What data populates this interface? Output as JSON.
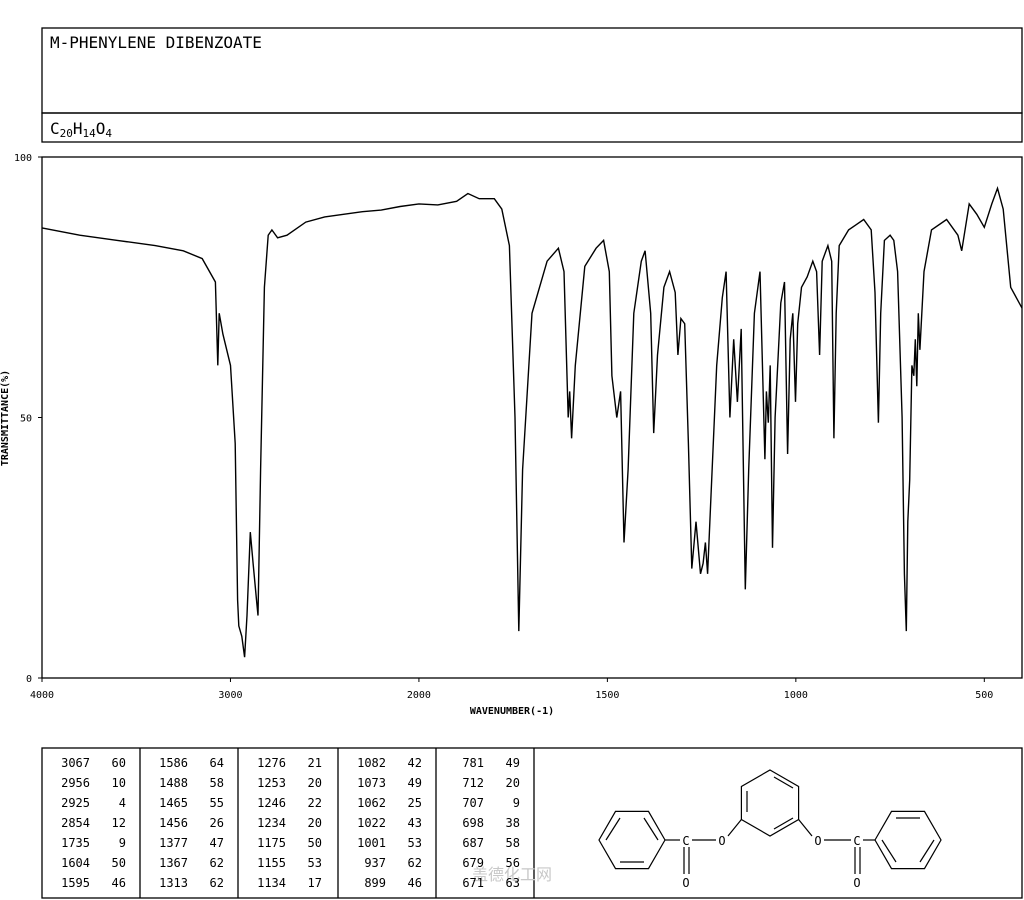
{
  "header": {
    "name": "M-PHENYLENE DIBENZOATE",
    "formula": "C20H14O4"
  },
  "chart_data": {
    "type": "line",
    "color": "#000000",
    "ylabel": "TRANSMITTANCE(%)",
    "xlabel": "WAVENUMBER(-1)",
    "xlim": [
      4000,
      400
    ],
    "ylim": [
      0,
      100
    ],
    "xticks": [
      4000,
      3000,
      2000,
      1500,
      1000,
      500
    ],
    "yticks": [
      0,
      50,
      100
    ],
    "grid": false,
    "x": [
      4000,
      3800,
      3600,
      3400,
      3250,
      3150,
      3080,
      3067,
      3060,
      3040,
      3000,
      2975,
      2962,
      2956,
      2940,
      2925,
      2912,
      2895,
      2880,
      2862,
      2854,
      2840,
      2820,
      2800,
      2780,
      2750,
      2700,
      2600,
      2500,
      2400,
      2300,
      2200,
      2100,
      2000,
      1950,
      1900,
      1870,
      1840,
      1800,
      1780,
      1760,
      1745,
      1735,
      1725,
      1700,
      1660,
      1630,
      1615,
      1604,
      1600,
      1595,
      1585,
      1560,
      1530,
      1510,
      1495,
      1488,
      1475,
      1465,
      1456,
      1445,
      1430,
      1410,
      1400,
      1385,
      1377,
      1367,
      1350,
      1335,
      1320,
      1313,
      1305,
      1295,
      1285,
      1276,
      1265,
      1253,
      1246,
      1240,
      1234,
      1225,
      1210,
      1195,
      1185,
      1175,
      1165,
      1155,
      1145,
      1134,
      1125,
      1110,
      1095,
      1082,
      1078,
      1073,
      1068,
      1062,
      1055,
      1040,
      1030,
      1022,
      1015,
      1008,
      1001,
      995,
      985,
      970,
      955,
      945,
      937,
      930,
      915,
      905,
      899,
      893,
      885,
      860,
      840,
      820,
      800,
      790,
      781,
      775,
      765,
      750,
      740,
      730,
      718,
      712,
      707,
      703,
      698,
      692,
      687,
      683,
      679,
      675,
      671,
      660,
      640,
      600,
      570,
      560,
      540,
      520,
      500,
      480,
      465,
      450,
      430,
      400
    ],
    "values": [
      86.4,
      85,
      84,
      83,
      82,
      80.5,
      76,
      60,
      70,
      66,
      60,
      45,
      15,
      10,
      8,
      4,
      12,
      28,
      22,
      15,
      12,
      40,
      75,
      85,
      86,
      84.5,
      85,
      87.5,
      88.5,
      89,
      89.5,
      89.8,
      90.5,
      91,
      90.8,
      91.5,
      93,
      92,
      92,
      90,
      83,
      50,
      9,
      40,
      70,
      80,
      82.5,
      78,
      50,
      55,
      46,
      60,
      79,
      82.5,
      84,
      78,
      58,
      50,
      55,
      26,
      40,
      70,
      80,
      82,
      70,
      47,
      62,
      75,
      78,
      74,
      62,
      69,
      68,
      45,
      21,
      30,
      20,
      22,
      26,
      20,
      35,
      60,
      73,
      78,
      50,
      65,
      53,
      67,
      17,
      40,
      70,
      78,
      42,
      55,
      49,
      60,
      25,
      50,
      72,
      76,
      43,
      65,
      70,
      53,
      68,
      75,
      77,
      80,
      78,
      62,
      80,
      83,
      80,
      46,
      70,
      83,
      86,
      87,
      88,
      86,
      74,
      49,
      70,
      84,
      85,
      84,
      78,
      50,
      20,
      9,
      30,
      38,
      60,
      58,
      65,
      56,
      70,
      63,
      78,
      86,
      88,
      85,
      82,
      91,
      89,
      86.5,
      91,
      94,
      90,
      75,
      71
    ]
  },
  "peaks": [
    [
      [
        3067,
        60
      ],
      [
        2956,
        10
      ],
      [
        2925,
        4
      ],
      [
        2854,
        12
      ],
      [
        1735,
        9
      ],
      [
        1604,
        50
      ],
      [
        1595,
        46
      ]
    ],
    [
      [
        1586,
        64
      ],
      [
        1488,
        58
      ],
      [
        1465,
        55
      ],
      [
        1456,
        26
      ],
      [
        1377,
        47
      ],
      [
        1367,
        62
      ],
      [
        1313,
        62
      ]
    ],
    [
      [
        1276,
        21
      ],
      [
        1253,
        20
      ],
      [
        1246,
        22
      ],
      [
        1234,
        20
      ],
      [
        1175,
        50
      ],
      [
        1155,
        53
      ],
      [
        1134,
        17
      ]
    ],
    [
      [
        1082,
        42
      ],
      [
        1073,
        49
      ],
      [
        1062,
        25
      ],
      [
        1022,
        43
      ],
      [
        1001,
        53
      ],
      [
        937,
        62
      ],
      [
        899,
        46
      ]
    ],
    [
      [
        781,
        49
      ],
      [
        712,
        20
      ],
      [
        707,
        9
      ],
      [
        698,
        38
      ],
      [
        687,
        58
      ],
      [
        679,
        56
      ],
      [
        671,
        63
      ]
    ]
  ],
  "structure": {
    "atoms": [
      "C",
      "O",
      "O",
      "O",
      "C",
      "O"
    ]
  },
  "watermark": "盖德化工网"
}
